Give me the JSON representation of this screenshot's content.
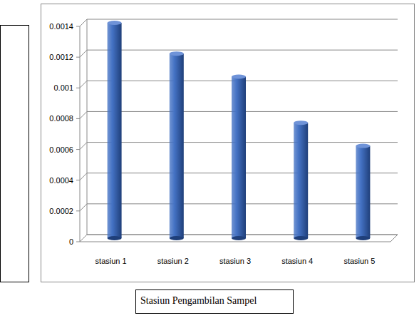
{
  "chart_data": {
    "type": "bar",
    "x_label": "Stasiun Pengambilan Sampel",
    "categories": [
      "stasiun 1",
      "stasiun 2",
      "stasiun 3",
      "stasiun 4",
      "stasiun 5"
    ],
    "values": [
      0.0014,
      0.0012,
      0.00105,
      0.00075,
      0.0006
    ],
    "color": "#4472c4",
    "ylim": [
      0,
      0.0014
    ],
    "yticks": [
      0,
      0.0002,
      0.0004,
      0.0006,
      0.0008,
      0.001,
      0.0012,
      0.0014
    ],
    "grid": true
  }
}
